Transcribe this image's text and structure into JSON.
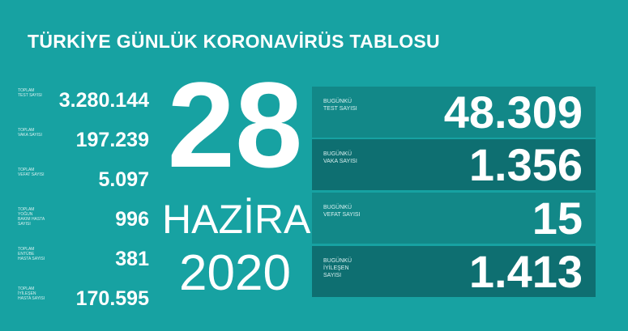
{
  "title": "TÜRKİYE GÜNLÜK KORONAVİRÜS TABLOSU",
  "date": {
    "day": "28",
    "month": "HAZİRAN",
    "year": "2020"
  },
  "totals": [
    {
      "label": "TOPLAM TEST SAYISI",
      "value": "3.280.144"
    },
    {
      "label": "TOPLAM VAKA SAYISI",
      "value": "197.239"
    },
    {
      "label": "TOPLAM VEFAT SAYISI",
      "value": "5.097"
    },
    {
      "label": "TOPLAM YOĞUN BAKIM HASTA SAYISI",
      "value": "996"
    },
    {
      "label": "TOPLAM ENTÜBE HASTA SAYISI",
      "value": "381"
    },
    {
      "label": "TOPLAM İYİLEŞEN HASTA SAYISI",
      "value": "170.595"
    }
  ],
  "today": [
    {
      "label": "BUGÜNKÜ TEST SAYISI",
      "value": "48.309"
    },
    {
      "label": "BUGÜNKÜ VAKA SAYISI",
      "value": "1.356"
    },
    {
      "label": "BUGÜNKÜ VEFAT SAYISI",
      "value": "15"
    },
    {
      "label": "BUGÜNKÜ İYİLEŞEN SAYISI",
      "value": "1.413"
    }
  ],
  "colors": {
    "background": "#17a2a2",
    "panel_light": "#128888",
    "panel_dark": "#0e6f71"
  }
}
